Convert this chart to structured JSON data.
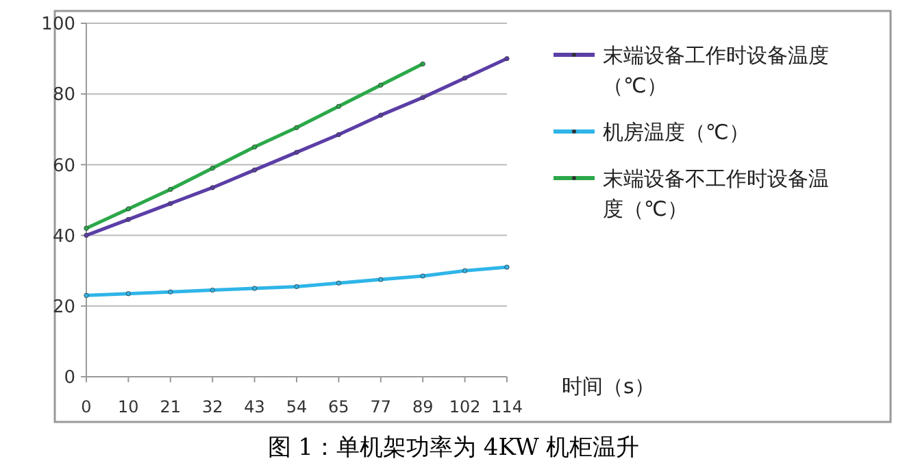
{
  "chart_data": {
    "type": "line",
    "title": "图 1：单机架功率为 4KW 机柜温升",
    "xlabel": "时间（s）",
    "categories": [
      "0",
      "10",
      "21",
      "32",
      "43",
      "54",
      "65",
      "77",
      "89",
      "102",
      "114"
    ],
    "series": [
      {
        "name": "末端设备工作时设备温度（℃）",
        "color": "#5b3ea6",
        "values": [
          40,
          44.5,
          49,
          53.5,
          58.5,
          63.5,
          68.5,
          74,
          79,
          84.5,
          90
        ]
      },
      {
        "name": "机房温度（℃）",
        "color": "#2fb5e8",
        "values": [
          23,
          23.5,
          24,
          24.5,
          25,
          25.5,
          26.5,
          27.5,
          28.5,
          30,
          31
        ]
      },
      {
        "name": "末端设备不工作时设备温度（℃）",
        "color": "#2ca84a",
        "values": [
          42,
          47.5,
          53,
          59,
          65,
          70.5,
          76.5,
          82.5,
          88.5,
          null,
          null
        ]
      }
    ],
    "ylim": [
      0,
      100
    ],
    "yticks": [
      0,
      20,
      40,
      60,
      80,
      100
    ],
    "grid": "y",
    "legend": "right",
    "marker": "circle",
    "line_style": "solid"
  }
}
